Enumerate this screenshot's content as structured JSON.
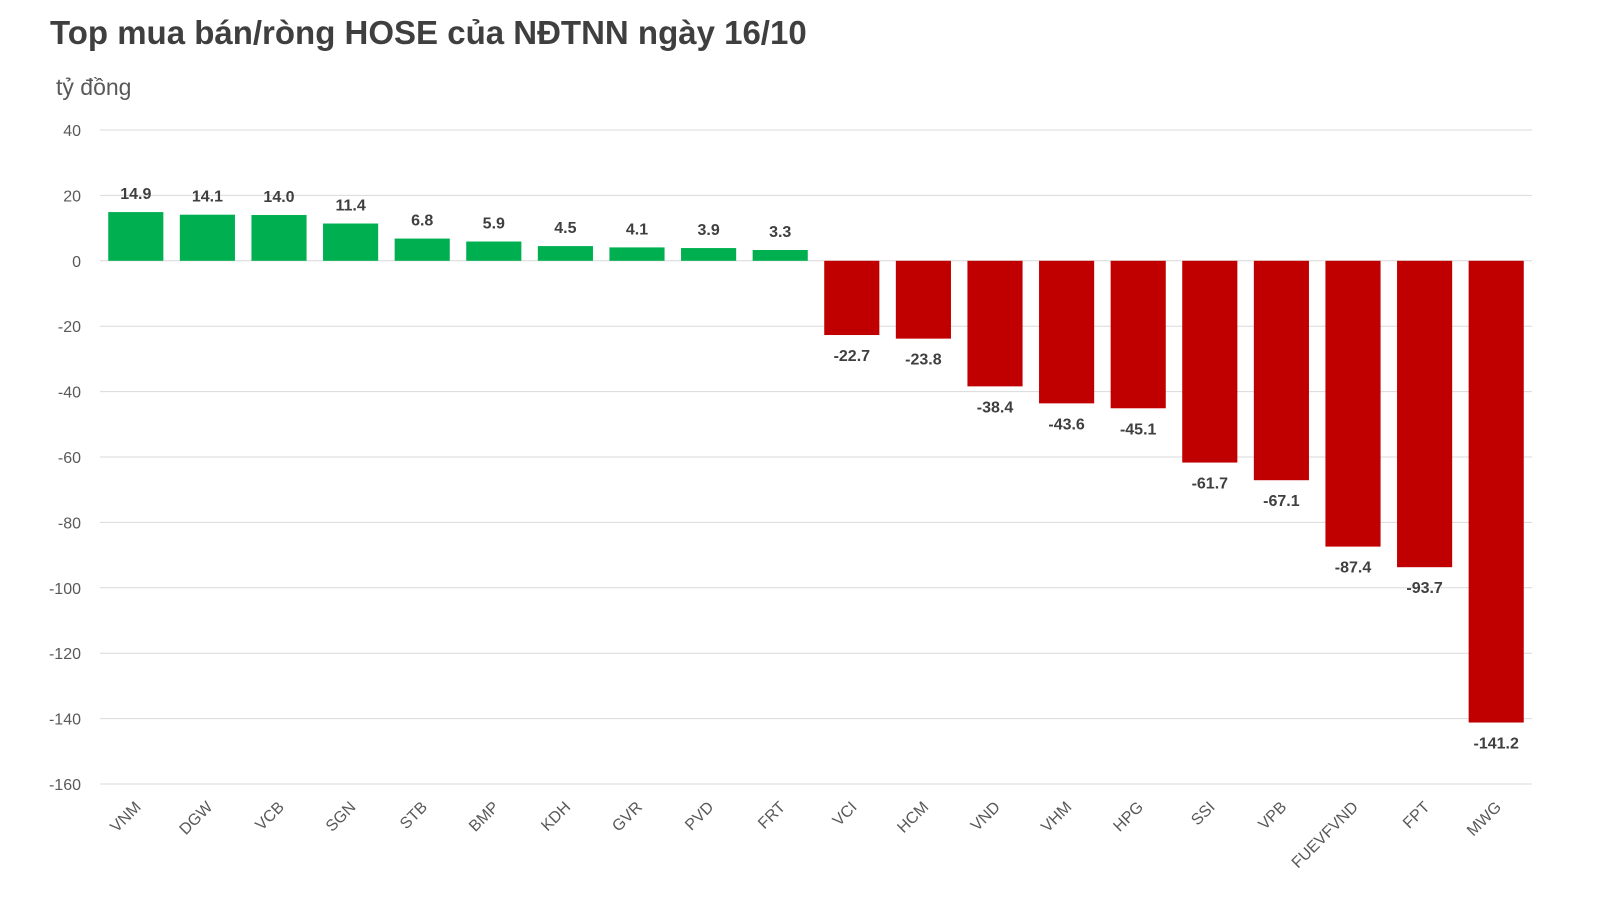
{
  "chart_data": {
    "type": "bar",
    "title": "Top mua bán/ròng HOSE của NĐTNN ngày 16/10",
    "ylabel": "tỷ đồng",
    "xlabel": "",
    "ylim": [
      -160,
      40
    ],
    "yticks": [
      40,
      20,
      0,
      -20,
      -40,
      -60,
      -80,
      -100,
      -120,
      -140,
      -160
    ],
    "grid": true,
    "legend": "none",
    "categories": [
      "VNM",
      "DGW",
      "VCB",
      "SGN",
      "STB",
      "BMP",
      "KDH",
      "GVR",
      "PVD",
      "FRT",
      "VCI",
      "HCM",
      "VND",
      "VHM",
      "HPG",
      "SSI",
      "VPB",
      "FUEVFVND",
      "FPT",
      "MWG"
    ],
    "values": [
      14.9,
      14.1,
      14.0,
      11.4,
      6.8,
      5.9,
      4.5,
      4.1,
      3.9,
      3.3,
      -22.7,
      -23.8,
      -38.4,
      -43.6,
      -45.1,
      -61.7,
      -67.1,
      -87.4,
      -93.7,
      -141.2
    ],
    "value_labels": [
      "14.9",
      "14.1",
      "14.0",
      "11.4",
      "6.8",
      "5.9",
      "4.5",
      "4.1",
      "3.9",
      "3.3",
      "-22.7",
      "-23.8",
      "-38.4",
      "-43.6",
      "-45.1",
      "-61.7",
      "-67.1",
      "-87.4",
      "-93.7",
      "-141.2"
    ],
    "colors": {
      "positive": "#00b050",
      "negative": "#c00000",
      "grid": "#d9d9d9",
      "text": "#595959"
    }
  }
}
